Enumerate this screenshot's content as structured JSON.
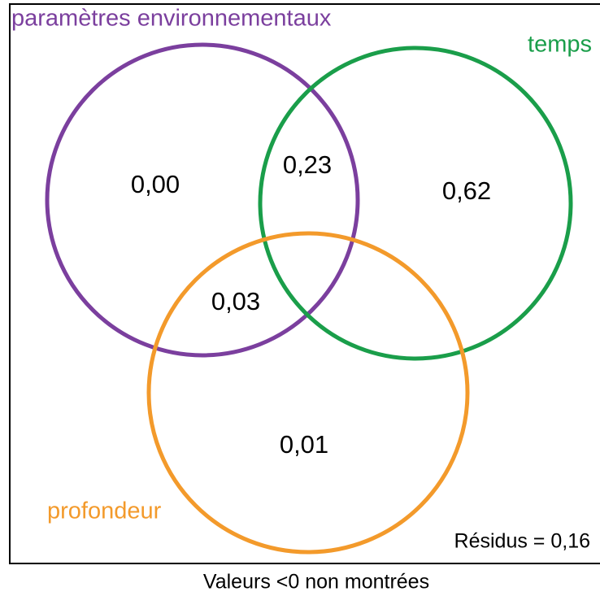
{
  "sets": [
    {
      "label": "paramètres environnementaux"
    },
    {
      "label": "temps"
    },
    {
      "label": "profondeur"
    }
  ],
  "regions": [
    {
      "value": "0,00"
    },
    {
      "value": "0,23"
    },
    {
      "value": "0,62"
    },
    {
      "value": "0,03"
    },
    {
      "value": "0,01"
    }
  ],
  "residuals": "Résidus = 0,16",
  "note": "Valeurs <0 non montrées"
}
